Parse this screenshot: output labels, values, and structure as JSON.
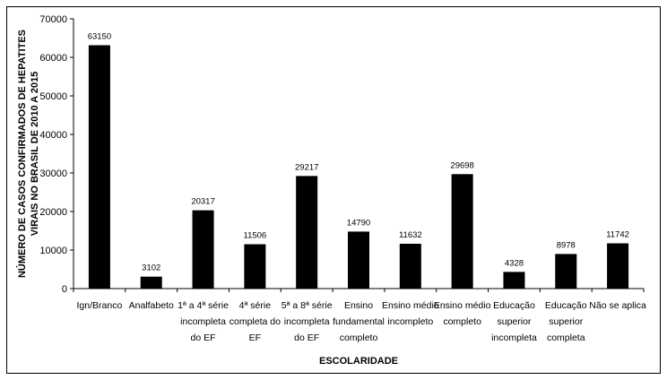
{
  "chart_data": {
    "type": "bar",
    "xlabel": "ESCOLARIDADE",
    "ylabel_lines": [
      "NÚMERO DE CASOS CONFIRMADOS DE HEPATITES",
      "VIRAIS NO BRASIL DE 2010 A 2015"
    ],
    "ylim": [
      0,
      70000
    ],
    "yticks": [
      0,
      10000,
      20000,
      30000,
      40000,
      50000,
      60000,
      70000
    ],
    "grid": false,
    "legend": "none",
    "bar_color": "#000000",
    "categories": [
      [
        "Ign/Branco"
      ],
      [
        "Analfabeto"
      ],
      [
        "1ª a 4ª série",
        "incompleta",
        "do EF"
      ],
      [
        "4ª série",
        "completa do",
        "EF"
      ],
      [
        "5ª a 8ª série",
        "incompleta",
        "do EF"
      ],
      [
        "Ensino",
        "fundamental",
        "completo"
      ],
      [
        "Ensino médio",
        "incompleto"
      ],
      [
        "Ensino médio",
        "completo"
      ],
      [
        "Educação",
        "superior",
        "incompleta"
      ],
      [
        "Educação",
        "superior",
        "completa"
      ],
      [
        "Não se aplica"
      ]
    ],
    "values": [
      63150,
      3102,
      20317,
      11506,
      29217,
      14790,
      11632,
      29698,
      4328,
      8978,
      11742
    ]
  }
}
